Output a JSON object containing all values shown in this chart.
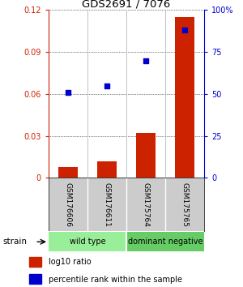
{
  "title": "GDS2691 / 7076",
  "samples": [
    "GSM176606",
    "GSM176611",
    "GSM175764",
    "GSM175765"
  ],
  "log10_ratio": [
    0.008,
    0.012,
    0.032,
    0.115
  ],
  "percentile_rank": [
    51,
    55,
    70,
    88
  ],
  "bar_color": "#cc2200",
  "dot_color": "#0000cc",
  "ylim_left": [
    0,
    0.12
  ],
  "ylim_right": [
    0,
    100
  ],
  "yticks_left": [
    0,
    0.03,
    0.06,
    0.09,
    0.12
  ],
  "yticks_right": [
    0,
    25,
    50,
    75,
    100
  ],
  "ytick_labels_right": [
    "0",
    "25",
    "50",
    "75",
    "100%"
  ],
  "groups": [
    {
      "label": "wild type",
      "indices": [
        0,
        1
      ],
      "color": "#99ee99"
    },
    {
      "label": "dominant negative",
      "indices": [
        2,
        3
      ],
      "color": "#66cc66"
    }
  ],
  "strain_label": "strain",
  "legend_items": [
    {
      "color": "#cc2200",
      "label": "log10 ratio"
    },
    {
      "color": "#0000cc",
      "label": "percentile rank within the sample"
    }
  ],
  "background_color": "#ffffff",
  "left_axis_color": "#cc2200",
  "right_axis_color": "#0000cc",
  "sample_bg_color": "#cccccc",
  "bar_width": 0.5
}
